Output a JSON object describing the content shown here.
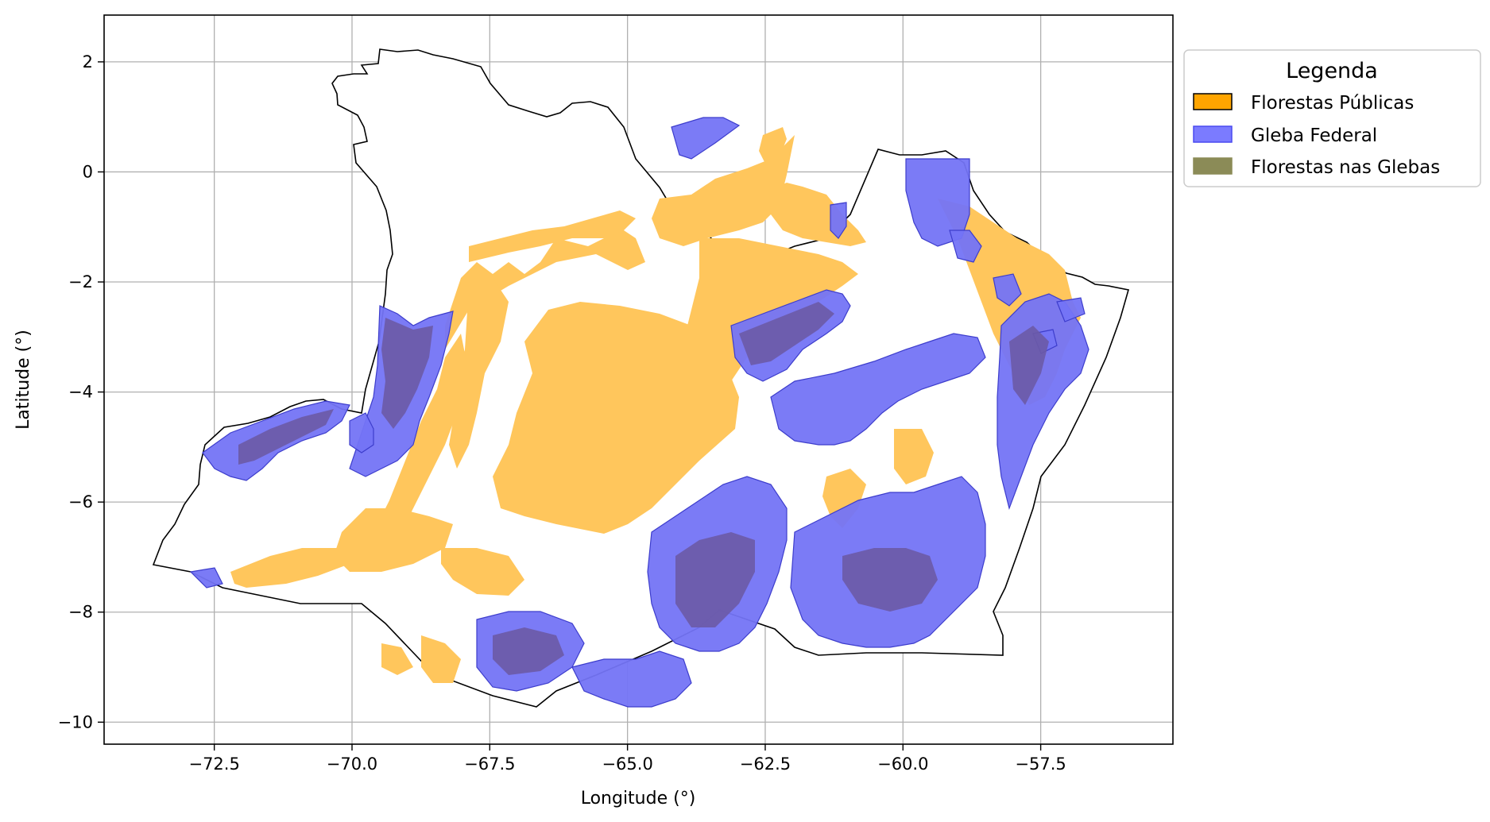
{
  "map": {
    "x_axis_label": "Longitude (°)",
    "y_axis_label": "Latitude (°)",
    "x_ticks": [
      "−72.5",
      "−70.0",
      "−67.5",
      "−65.0",
      "−62.5",
      "−60.0",
      "−57.5"
    ],
    "x_tick_values": [
      -72.5,
      -70.0,
      -67.5,
      -65.0,
      -62.5,
      -60.0,
      -57.5
    ],
    "y_ticks": [
      "2",
      "0",
      "−2",
      "−4",
      "−6",
      "−8",
      "−10"
    ],
    "y_tick_values": [
      2,
      0,
      -2,
      -4,
      -6,
      -8,
      -10
    ],
    "xlim": [
      -74.5,
      -55.1
    ],
    "ylim": [
      -10.4,
      2.85
    ],
    "grid": true
  },
  "legend": {
    "title": "Legenda",
    "placement": "outside-top-right",
    "items": [
      {
        "label": "Florestas Públicas",
        "color": "#ffa500",
        "edge": "#000000"
      },
      {
        "label": "Gleba Federal",
        "color": "#7b7bff",
        "edge": "#4a4af0"
      },
      {
        "label": "Florestas nas Glebas",
        "color": "#8b8b57",
        "edge": "#8b8b57"
      }
    ]
  },
  "colors": {
    "public_forest": "#ffc65c",
    "federal_gleba": "#7474f6",
    "forest_in_gleba": "#6b5aa6",
    "outline": "#000000",
    "grid": "#b0b0b0"
  }
}
